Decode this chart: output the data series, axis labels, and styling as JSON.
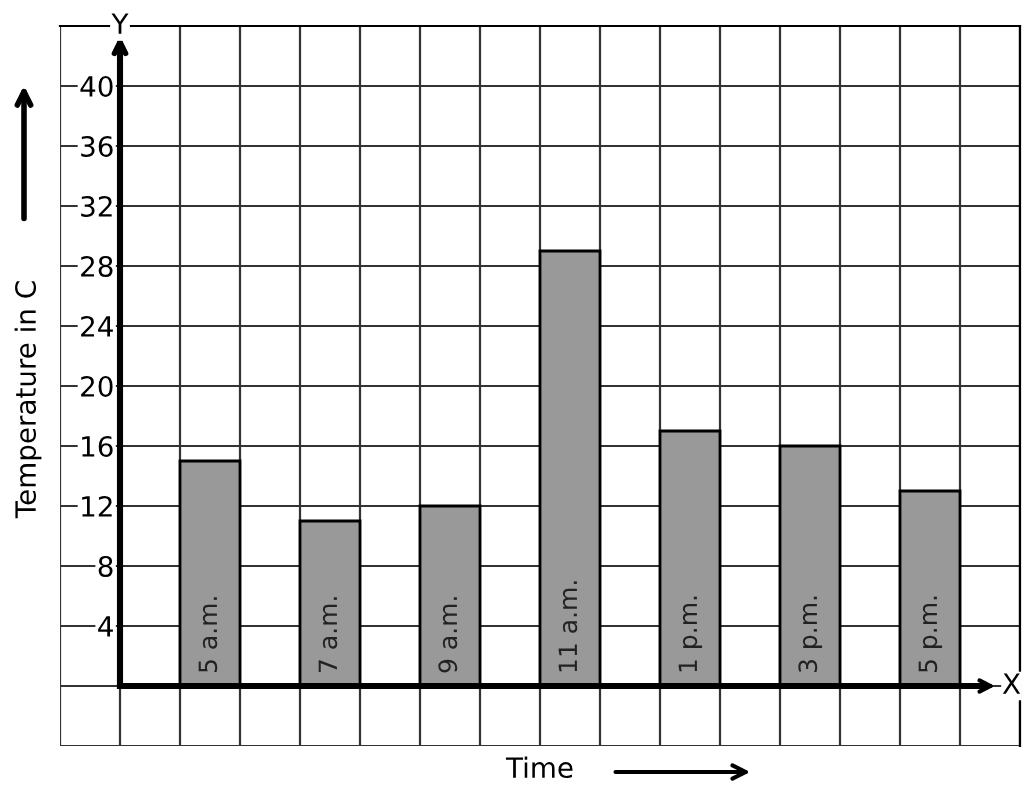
{
  "chart_data": {
    "type": "bar",
    "xlabel": "Time",
    "ylabel": "Temperature in C",
    "categories": [
      "5 a.m.",
      "7 a.m.",
      "9 a.m.",
      "11 a.m.",
      "1 p.m.",
      "3 p.m.",
      "5 p.m."
    ],
    "values": [
      15,
      11,
      12,
      29,
      17,
      16,
      13
    ],
    "color": "#999999",
    "ylim": [
      -4,
      44
    ],
    "yticks": [
      4,
      8,
      12,
      16,
      20,
      24,
      28,
      32,
      36,
      40
    ],
    "grid": true,
    "annotations": [
      "Y",
      "X"
    ]
  }
}
